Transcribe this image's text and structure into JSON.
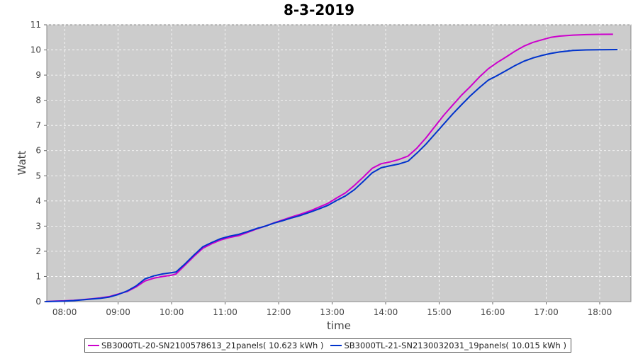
{
  "chart_data": {
    "type": "line",
    "title": "8-3-2019",
    "xlabel": "time",
    "ylabel": "Watt",
    "xlim": [
      "07:40",
      "18:35"
    ],
    "ylim": [
      0,
      11
    ],
    "x_ticks": [
      "08:00",
      "09:00",
      "10:00",
      "11:00",
      "12:00",
      "13:00",
      "14:00",
      "15:00",
      "16:00",
      "17:00",
      "18:00"
    ],
    "y_ticks": [
      0,
      1,
      2,
      3,
      4,
      5,
      6,
      7,
      8,
      9,
      10,
      11
    ],
    "grid": true,
    "legend_position": "bottom",
    "background": "#cccccc",
    "series": [
      {
        "name": "SB3000TL-20-SN2100578613_21panels( 10.623 kWh )",
        "color": "#cc00cc",
        "points": [
          [
            "07:38",
            0.0
          ],
          [
            "07:50",
            0.02
          ],
          [
            "08:00",
            0.03
          ],
          [
            "08:10",
            0.05
          ],
          [
            "08:20",
            0.08
          ],
          [
            "08:30",
            0.11
          ],
          [
            "08:40",
            0.15
          ],
          [
            "08:50",
            0.2
          ],
          [
            "09:00",
            0.3
          ],
          [
            "09:10",
            0.4
          ],
          [
            "09:20",
            0.58
          ],
          [
            "09:30",
            0.82
          ],
          [
            "09:40",
            0.93
          ],
          [
            "09:50",
            1.0
          ],
          [
            "10:00",
            1.05
          ],
          [
            "10:05",
            1.1
          ],
          [
            "10:15",
            1.45
          ],
          [
            "10:25",
            1.8
          ],
          [
            "10:35",
            2.12
          ],
          [
            "10:45",
            2.3
          ],
          [
            "10:55",
            2.45
          ],
          [
            "11:05",
            2.55
          ],
          [
            "11:15",
            2.62
          ],
          [
            "11:25",
            2.75
          ],
          [
            "11:35",
            2.88
          ],
          [
            "11:45",
            3.0
          ],
          [
            "11:55",
            3.13
          ],
          [
            "12:05",
            3.25
          ],
          [
            "12:15",
            3.37
          ],
          [
            "12:25",
            3.48
          ],
          [
            "12:35",
            3.6
          ],
          [
            "12:45",
            3.75
          ],
          [
            "12:55",
            3.9
          ],
          [
            "13:05",
            4.12
          ],
          [
            "13:15",
            4.32
          ],
          [
            "13:25",
            4.62
          ],
          [
            "13:35",
            4.95
          ],
          [
            "13:45",
            5.3
          ],
          [
            "13:55",
            5.48
          ],
          [
            "14:05",
            5.55
          ],
          [
            "14:15",
            5.65
          ],
          [
            "14:25",
            5.78
          ],
          [
            "14:35",
            6.1
          ],
          [
            "14:45",
            6.5
          ],
          [
            "14:55",
            6.95
          ],
          [
            "15:05",
            7.4
          ],
          [
            "15:15",
            7.8
          ],
          [
            "15:25",
            8.2
          ],
          [
            "15:35",
            8.55
          ],
          [
            "15:45",
            8.92
          ],
          [
            "15:55",
            9.25
          ],
          [
            "16:05",
            9.5
          ],
          [
            "16:15",
            9.72
          ],
          [
            "16:25",
            9.95
          ],
          [
            "16:35",
            10.15
          ],
          [
            "16:45",
            10.3
          ],
          [
            "16:55",
            10.4
          ],
          [
            "17:05",
            10.5
          ],
          [
            "17:15",
            10.55
          ],
          [
            "17:30",
            10.59
          ],
          [
            "17:45",
            10.61
          ],
          [
            "18:00",
            10.62
          ],
          [
            "18:15",
            10.623
          ]
        ]
      },
      {
        "name": "SB3000TL-21-SN2130032031_19panels( 10.015 kWh )",
        "color": "#0033cc",
        "points": [
          [
            "07:38",
            0.0
          ],
          [
            "07:50",
            0.01
          ],
          [
            "08:00",
            0.02
          ],
          [
            "08:10",
            0.04
          ],
          [
            "08:20",
            0.07
          ],
          [
            "08:30",
            0.1
          ],
          [
            "08:40",
            0.13
          ],
          [
            "08:50",
            0.18
          ],
          [
            "09:00",
            0.28
          ],
          [
            "09:10",
            0.42
          ],
          [
            "09:20",
            0.62
          ],
          [
            "09:30",
            0.9
          ],
          [
            "09:40",
            1.02
          ],
          [
            "09:50",
            1.1
          ],
          [
            "10:00",
            1.15
          ],
          [
            "10:05",
            1.18
          ],
          [
            "10:15",
            1.5
          ],
          [
            "10:25",
            1.85
          ],
          [
            "10:35",
            2.18
          ],
          [
            "10:45",
            2.35
          ],
          [
            "10:55",
            2.5
          ],
          [
            "11:05",
            2.6
          ],
          [
            "11:15",
            2.67
          ],
          [
            "11:25",
            2.78
          ],
          [
            "11:35",
            2.9
          ],
          [
            "11:45",
            3.0
          ],
          [
            "11:55",
            3.12
          ],
          [
            "12:05",
            3.22
          ],
          [
            "12:15",
            3.33
          ],
          [
            "12:25",
            3.43
          ],
          [
            "12:35",
            3.55
          ],
          [
            "12:45",
            3.68
          ],
          [
            "12:55",
            3.82
          ],
          [
            "13:05",
            4.02
          ],
          [
            "13:15",
            4.2
          ],
          [
            "13:25",
            4.45
          ],
          [
            "13:35",
            4.78
          ],
          [
            "13:45",
            5.12
          ],
          [
            "13:55",
            5.32
          ],
          [
            "14:05",
            5.4
          ],
          [
            "14:15",
            5.47
          ],
          [
            "14:25",
            5.58
          ],
          [
            "14:35",
            5.9
          ],
          [
            "14:45",
            6.25
          ],
          [
            "14:55",
            6.65
          ],
          [
            "15:05",
            7.05
          ],
          [
            "15:15",
            7.45
          ],
          [
            "15:25",
            7.82
          ],
          [
            "15:35",
            8.18
          ],
          [
            "15:45",
            8.5
          ],
          [
            "15:55",
            8.8
          ],
          [
            "16:05",
            8.98
          ],
          [
            "16:15",
            9.18
          ],
          [
            "16:25",
            9.38
          ],
          [
            "16:35",
            9.55
          ],
          [
            "16:45",
            9.68
          ],
          [
            "16:55",
            9.78
          ],
          [
            "17:05",
            9.86
          ],
          [
            "17:15",
            9.92
          ],
          [
            "17:30",
            9.98
          ],
          [
            "17:45",
            10.0
          ],
          [
            "18:00",
            10.01
          ],
          [
            "18:20",
            10.015
          ]
        ]
      }
    ]
  }
}
